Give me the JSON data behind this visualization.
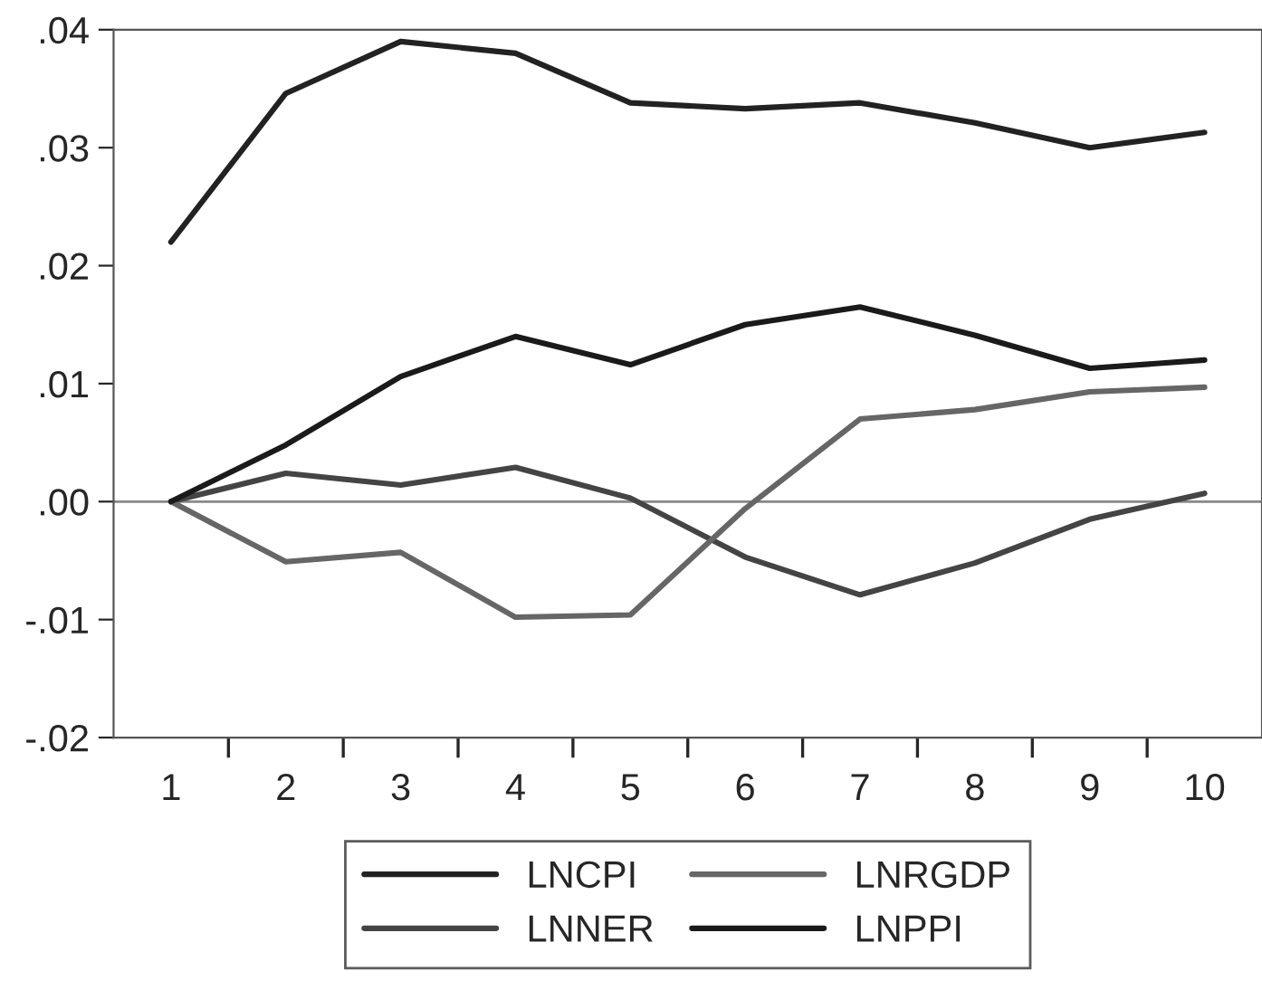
{
  "chart_data": {
    "type": "line",
    "categories": [
      "1",
      "2",
      "3",
      "4",
      "5",
      "6",
      "7",
      "8",
      "9",
      "10"
    ],
    "series": [
      {
        "name": "LNCPI",
        "color": "#222222",
        "values": [
          0.022,
          0.0346,
          0.039,
          0.038,
          0.0338,
          0.0333,
          0.0338,
          0.0321,
          0.03,
          0.0313
        ]
      },
      {
        "name": "LNNER",
        "color": "#444444",
        "values": [
          0,
          0.0024,
          0.0014,
          0.0029,
          0.0003,
          -0.0047,
          -0.0079,
          -0.0052,
          -0.0015,
          0.0007
        ]
      },
      {
        "name": "LNRGDP",
        "color": "#666666",
        "values": [
          0,
          -0.0051,
          -0.0043,
          -0.0098,
          -0.0096,
          -0.0006,
          0.007,
          0.0078,
          0.0093,
          0.0097
        ]
      },
      {
        "name": "LNPPI",
        "color": "#1a1a1a",
        "values": [
          0,
          0.0048,
          0.0106,
          0.014,
          0.0116,
          0.015,
          0.0165,
          0.0141,
          0.0113,
          0.012
        ]
      }
    ],
    "ylim": [
      -0.02,
      0.04
    ],
    "yticks": [
      {
        "value": -0.02,
        "label": "-.02"
      },
      {
        "value": -0.01,
        "label": "-.01"
      },
      {
        "value": 0,
        "label": ".00"
      },
      {
        "value": 0.01,
        "label": ".01"
      },
      {
        "value": 0.02,
        "label": ".02"
      },
      {
        "value": 0.03,
        "label": ".03"
      },
      {
        "value": 0.04,
        "label": ".04"
      }
    ],
    "ref_lines": [
      {
        "axis": "y",
        "value": 0,
        "color": "#888888"
      }
    ],
    "grid": false,
    "legend": "bottom",
    "marker": "none",
    "line_style": "solid"
  }
}
